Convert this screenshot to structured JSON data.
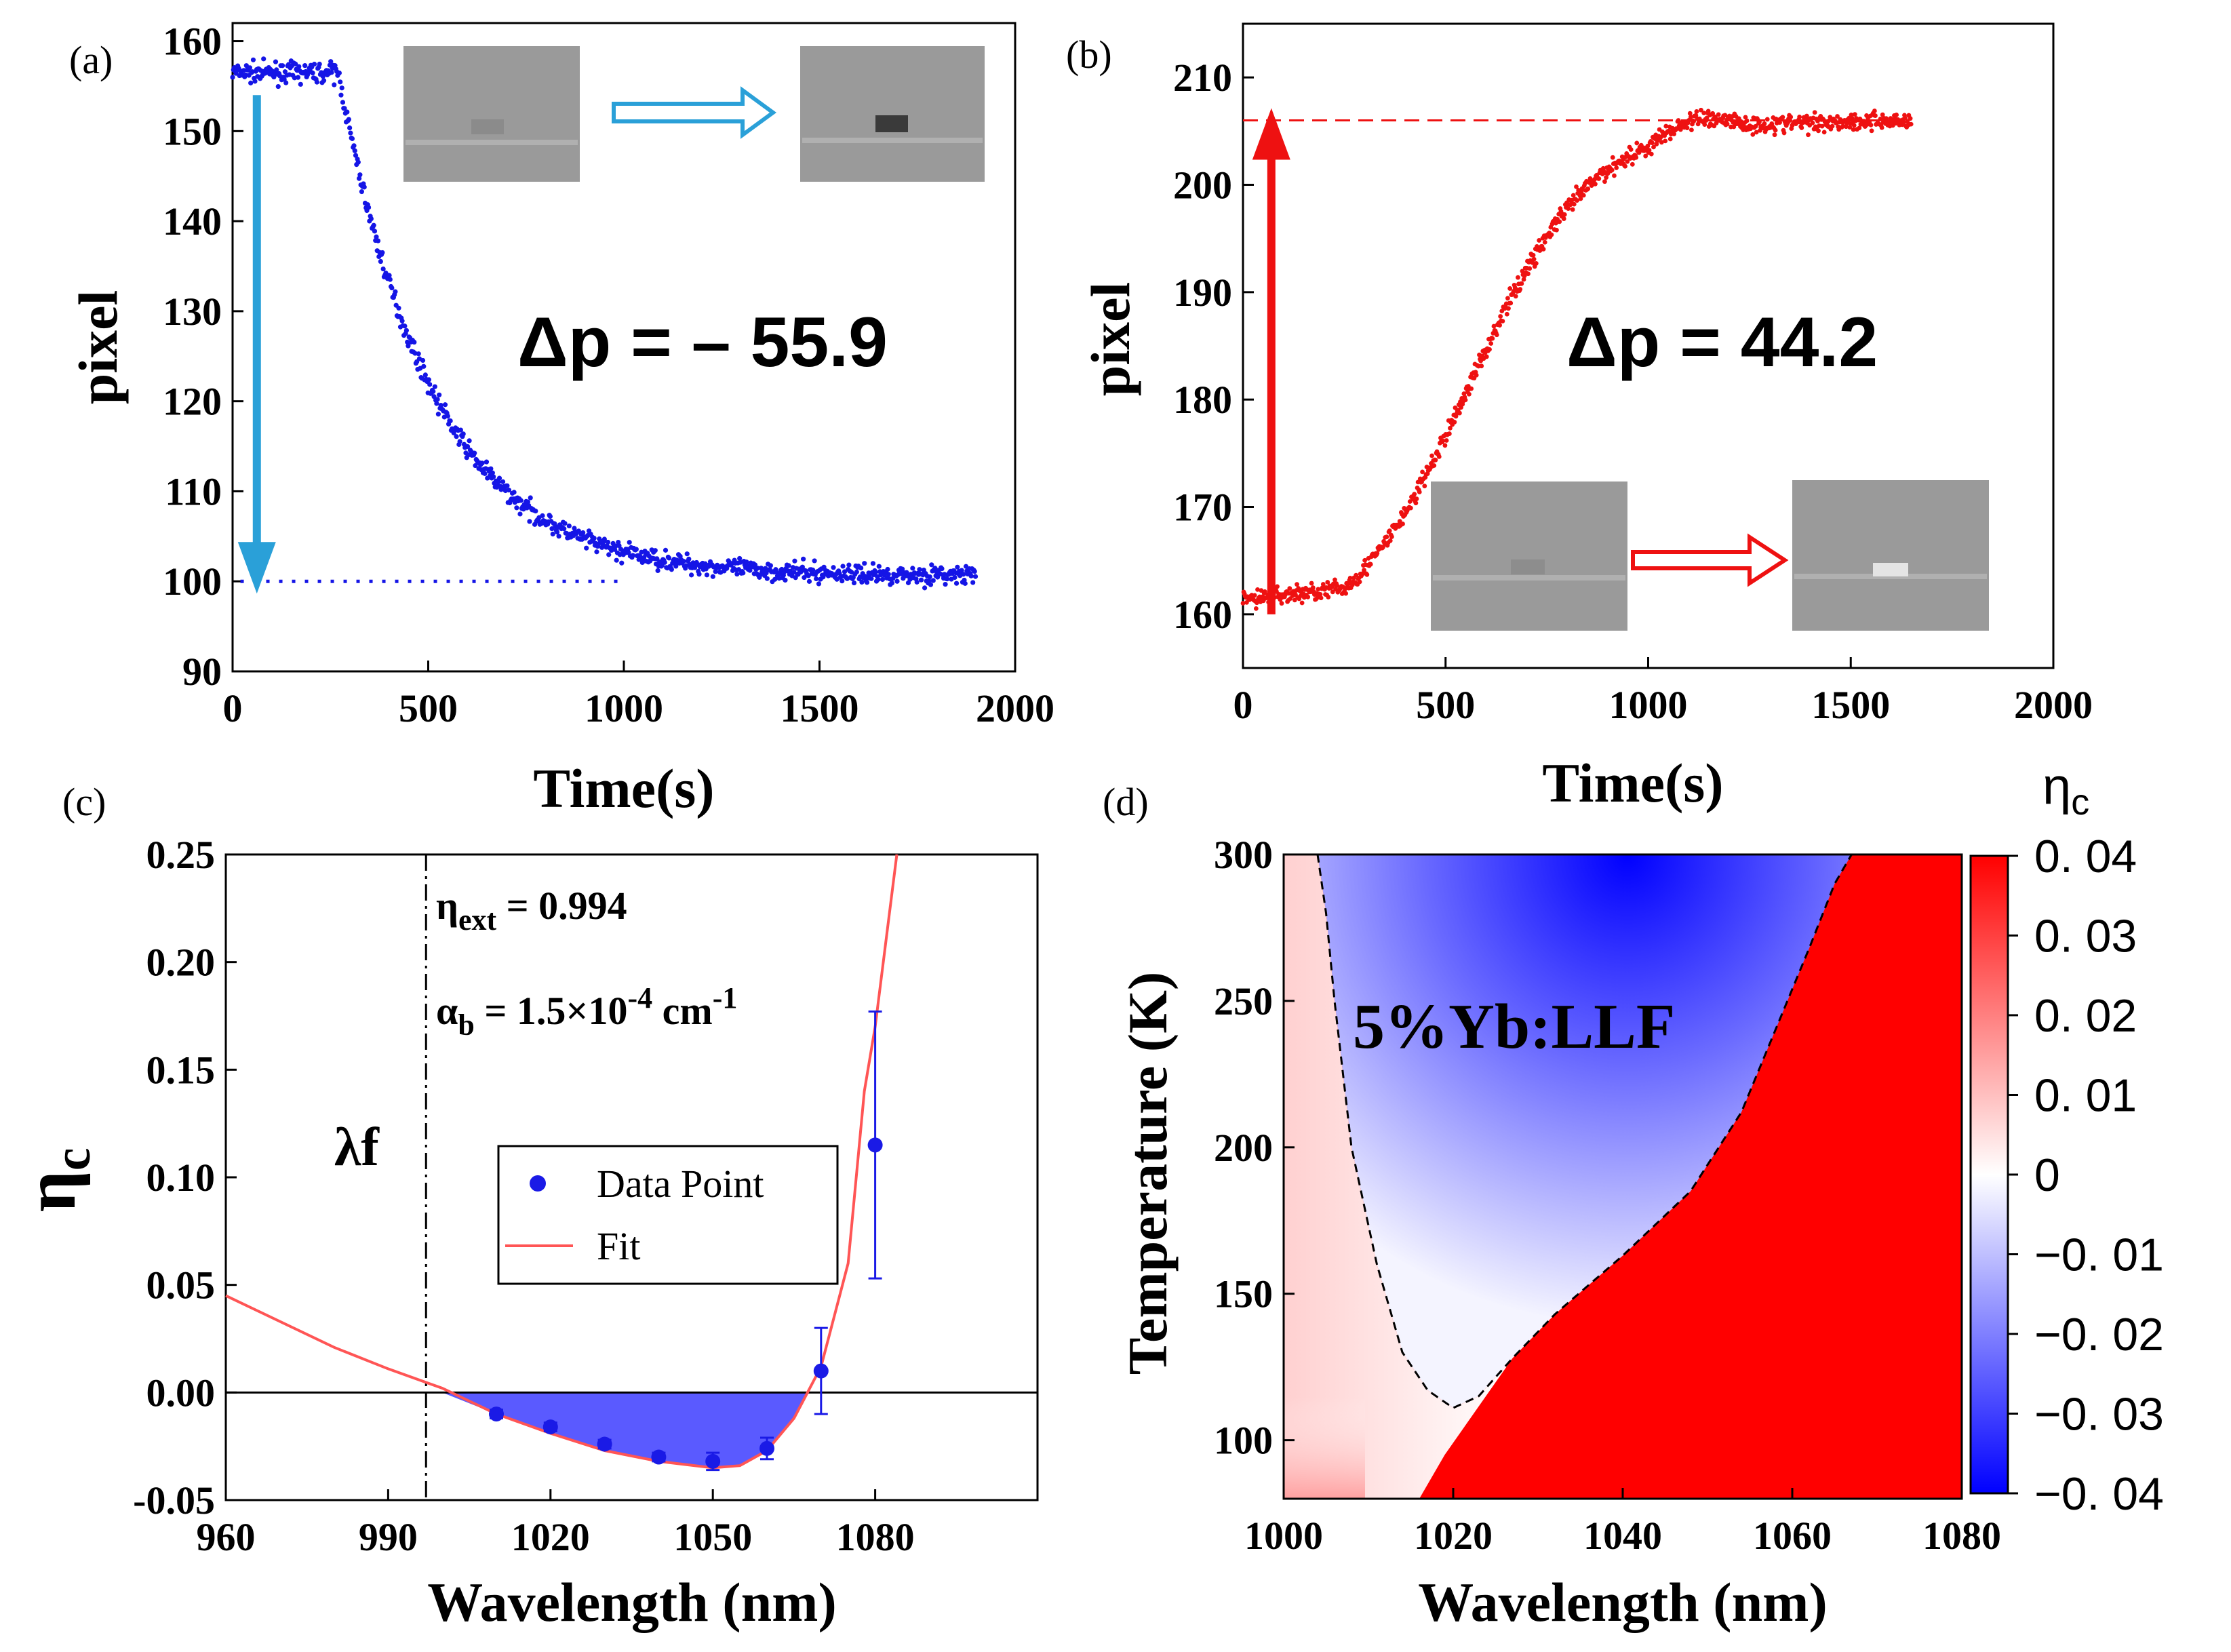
{
  "panel_labels": {
    "a": "(a)",
    "b": "(b)",
    "c": "(c)",
    "d": "(d)"
  },
  "annotations": {
    "a_delta": "Δp = – 55.9",
    "b_delta": "Δp = 44.2",
    "c_eta_ext_sym": "η",
    "c_eta_ext_sub": "ext",
    "c_eta_ext_val": " = 0.994",
    "c_alpha_sym": "α",
    "c_alpha_sub": "b",
    "c_alpha_val": " = 1.5×10",
    "c_alpha_exp": "-4",
    "c_alpha_unit": " cm",
    "c_alpha_unit_exp": "-1",
    "c_lambda_f": "λf",
    "d_material": "5%Yb:LLF",
    "d_colorbar_sym": "η",
    "d_colorbar_sub": "c"
  },
  "colors": {
    "series_a": "#1515e6",
    "arrow_a": "#2aa0d8",
    "series_b": "#ee1111",
    "fit": "#ff5555",
    "fill_c": "#5a5aff",
    "points_c": "#1a1ae6",
    "heat_neg": "#0000ff",
    "heat_pos": "#ff0000"
  },
  "chart_data": [
    {
      "id": "a",
      "type": "scatter",
      "xlabel": "Time(s)",
      "ylabel": "pixel",
      "xlim": [
        0,
        2000
      ],
      "ylim": [
        90,
        162
      ],
      "xticks": [
        "0",
        "500",
        "1000",
        "1500",
        "2000"
      ],
      "yticks": [
        "90",
        "100",
        "110",
        "120",
        "130",
        "140",
        "150",
        "160"
      ],
      "baseline": 100,
      "delta_p": -55.9,
      "model": {
        "plateau": 156.5,
        "final": 100.6,
        "t_start": 270,
        "tau": 240,
        "t_end": 1900
      },
      "sample_points": [
        [
          0,
          156.5
        ],
        [
          270,
          156.5
        ],
        [
          400,
          142
        ],
        [
          500,
          131
        ],
        [
          700,
          116
        ],
        [
          900,
          107
        ],
        [
          1100,
          102
        ],
        [
          1500,
          100.5
        ],
        [
          1900,
          100.5
        ]
      ]
    },
    {
      "id": "b",
      "type": "scatter",
      "xlabel": "Time(s)",
      "ylabel": "pixel",
      "xlim": [
        0,
        2000
      ],
      "ylim": [
        155,
        215
      ],
      "xticks": [
        "0",
        "500",
        "1000",
        "1500",
        "2000"
      ],
      "yticks": [
        "160",
        "170",
        "180",
        "190",
        "200",
        "210"
      ],
      "baseline": 206,
      "delta_p": 44.2,
      "model": {
        "start": 161.8,
        "final": 206,
        "t_start": 250,
        "midpoint": 560,
        "scale": 150,
        "t_end": 1650
      },
      "sample_points": [
        [
          0,
          161
        ],
        [
          250,
          162.5
        ],
        [
          400,
          175
        ],
        [
          500,
          184
        ],
        [
          600,
          190
        ],
        [
          800,
          199
        ],
        [
          1000,
          205
        ],
        [
          1100,
          207
        ],
        [
          1650,
          206
        ]
      ]
    },
    {
      "id": "c",
      "type": "scatter",
      "xlabel": "Wavelength (nm)",
      "ylabel_sym": "η",
      "ylabel_sub": "c",
      "xlim": [
        960,
        1110
      ],
      "ylim": [
        -0.05,
        0.25
      ],
      "xticks": [
        "960",
        "990",
        "1020",
        "1050",
        "1080"
      ],
      "yticks": [
        "-0.05",
        "0.00",
        "0.05",
        "0.10",
        "0.15",
        "0.20",
        "0.25"
      ],
      "lambda_f": 997,
      "legend": [
        "Data Point",
        "Fit"
      ],
      "points": [
        {
          "x": 1010,
          "y": -0.01,
          "err": 0.002
        },
        {
          "x": 1020,
          "y": -0.016,
          "err": 0.002
        },
        {
          "x": 1030,
          "y": -0.024,
          "err": 0.002
        },
        {
          "x": 1040,
          "y": -0.03,
          "err": 0.002
        },
        {
          "x": 1050,
          "y": -0.032,
          "err": 0.004
        },
        {
          "x": 1060,
          "y": -0.026,
          "err": 0.005
        },
        {
          "x": 1070,
          "y": 0.01,
          "err": 0.02
        },
        {
          "x": 1080,
          "y": 0.115,
          "err": 0.062
        }
      ],
      "fit": [
        [
          960,
          0.045
        ],
        [
          980,
          0.021
        ],
        [
          990,
          0.011
        ],
        [
          1000,
          0.002
        ],
        [
          1010,
          -0.01
        ],
        [
          1020,
          -0.019
        ],
        [
          1030,
          -0.027
        ],
        [
          1040,
          -0.032
        ],
        [
          1050,
          -0.035
        ],
        [
          1055,
          -0.034
        ],
        [
          1060,
          -0.027
        ],
        [
          1065,
          -0.012
        ],
        [
          1070,
          0.012
        ],
        [
          1075,
          0.06
        ],
        [
          1078,
          0.14
        ],
        [
          1080,
          0.17
        ],
        [
          1082,
          0.21
        ],
        [
          1084,
          0.25
        ]
      ]
    },
    {
      "id": "d",
      "type": "heatmap",
      "xlabel": "Wavelength (nm)",
      "ylabel": "Temperature (K)",
      "xlim": [
        1000,
        1080
      ],
      "ylim": [
        80,
        300
      ],
      "xticks": [
        "1000",
        "1020",
        "1040",
        "1060",
        "1080"
      ],
      "yticks": [
        "100",
        "150",
        "200",
        "250",
        "300"
      ],
      "colorbar_range": [
        -0.04,
        0.04
      ],
      "colorbar_ticks": [
        "0. 04",
        "0. 03",
        "0. 02",
        "0. 01",
        "0",
        "−0. 01",
        "−0. 02",
        "−0. 03",
        "−0. 04"
      ],
      "zero_contour": [
        [
          1004,
          300
        ],
        [
          1005,
          280
        ],
        [
          1006,
          250
        ],
        [
          1008,
          200
        ],
        [
          1011,
          160
        ],
        [
          1014,
          130
        ],
        [
          1017,
          117
        ],
        [
          1020,
          111
        ],
        [
          1023,
          115
        ],
        [
          1027,
          128
        ],
        [
          1032,
          143
        ],
        [
          1040,
          163
        ],
        [
          1048,
          185
        ],
        [
          1054,
          212
        ],
        [
          1058,
          240
        ],
        [
          1062,
          268
        ],
        [
          1065,
          290
        ],
        [
          1067,
          300
        ]
      ]
    }
  ]
}
